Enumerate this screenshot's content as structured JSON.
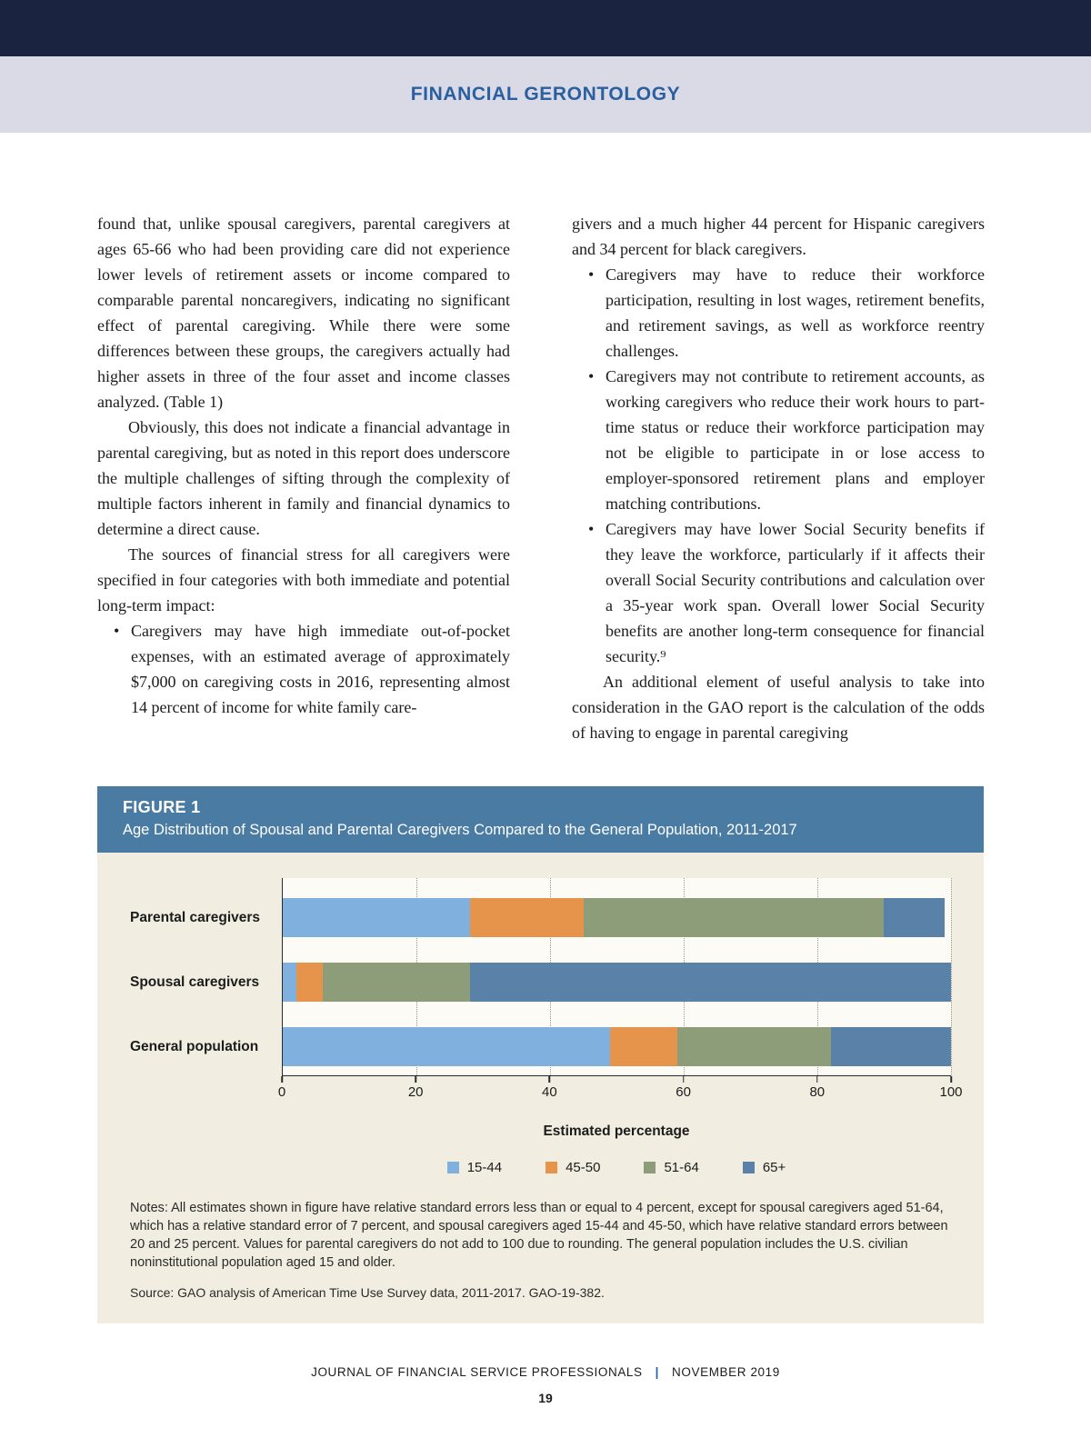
{
  "header": {
    "band_title": "FINANCIAL GERONTOLOGY"
  },
  "article": {
    "bullet_marker": "•",
    "left_column": {
      "para1": "found that, unlike spousal caregivers, parental caregivers at ages 65-66 who had been providing care did not experience lower levels of retirement assets or income compared to comparable parental noncaregivers, indicating no significant effect of parental caregiving. While there were some differences between these groups, the caregivers actually had higher assets in three of the four asset and income classes analyzed. (Table 1)",
      "para2": "Obviously, this does not indicate a financial advantage in parental caregiving, but as noted in this report does underscore the multiple challenges of sifting through the complexity of multiple factors inherent in family and financial dynamics to determine a direct cause.",
      "para3": "The sources of financial stress for all caregivers were specified in four categories with both immediate and potential long-term impact:",
      "bullet1": "Caregivers may have high immediate out-of-pocket expenses, with an estimated average of approximately $7,000 on caregiving costs in 2016, representing almost 14 percent of income for white family care-"
    },
    "right_column": {
      "para1": "givers and a much higher 44 percent for Hispanic caregivers and 34 percent for black caregivers.",
      "bullet1": "Caregivers may have to reduce their workforce participation, resulting in lost wages, retirement benefits, and retirement savings, as well as workforce reentry challenges.",
      "bullet2": "Caregivers may not contribute to retirement accounts, as working caregivers who reduce their work hours to part-time status or reduce their workforce participation may not be eligible to participate in or lose access to employer-sponsored retirement plans and employer matching contributions.",
      "bullet3": "Caregivers may have lower Social Security benefits if they leave the workforce, particularly if it affects their overall Social Security contributions and calculation over a 35-year work span. Overall lower Social Security benefits are another long-term consequence for financial security.⁹",
      "para2": "An additional element of useful analysis to take into consideration in the GAO report is the calculation of the odds of having to engage in parental caregiving"
    }
  },
  "figure": {
    "label": "FIGURE 1",
    "title": "Age Distribution of Spousal and Parental Caregivers Compared to the General Population, 2011-2017",
    "notes": "Notes: All estimates shown in figure have relative standard errors less than or equal to 4 percent, except for spousal caregivers aged 51-64, which has a relative standard error of 7 percent, and spousal caregivers aged 15-44 and 45-50, which have relative standard errors between 20 and 25 percent. Values for parental caregivers do not add to 100 due to rounding. The general population includes the U.S. civilian noninstitutional population aged 15 and older.",
    "source": "Source: GAO analysis of American Time Use Survey data, 2011-2017. GAO-19-382."
  },
  "chart_data": {
    "type": "bar",
    "orientation": "horizontal",
    "stacked": true,
    "categories": [
      "Parental caregivers",
      "Spousal caregivers",
      "General population"
    ],
    "series": [
      {
        "name": "15-44",
        "color": "#7fb0de",
        "values": [
          28,
          2,
          49
        ]
      },
      {
        "name": "45-50",
        "color": "#e6934b",
        "values": [
          17,
          4,
          10
        ]
      },
      {
        "name": "51-64",
        "color": "#8e9d79",
        "values": [
          45,
          22,
          23
        ]
      },
      {
        "name": "65+",
        "color": "#5a81a8",
        "values": [
          9,
          72,
          18
        ]
      }
    ],
    "xlabel": "Estimated percentage",
    "xlim": [
      0,
      100
    ],
    "xticks": [
      0,
      20,
      40,
      60,
      80,
      100
    ],
    "grid": "dotted-vertical",
    "legend_position": "bottom"
  },
  "footer": {
    "journal": "JOURNAL OF FINANCIAL SERVICE PROFESSIONALS",
    "separator": "|",
    "issue": "NOVEMBER 2019",
    "page_number": "19"
  },
  "colors": {
    "top_bar": "#1a2440",
    "band": "#d9dae6",
    "band_title": "#2a5fa0",
    "figure_header": "#4a7ba3",
    "figure_body": "#f1eee1"
  }
}
